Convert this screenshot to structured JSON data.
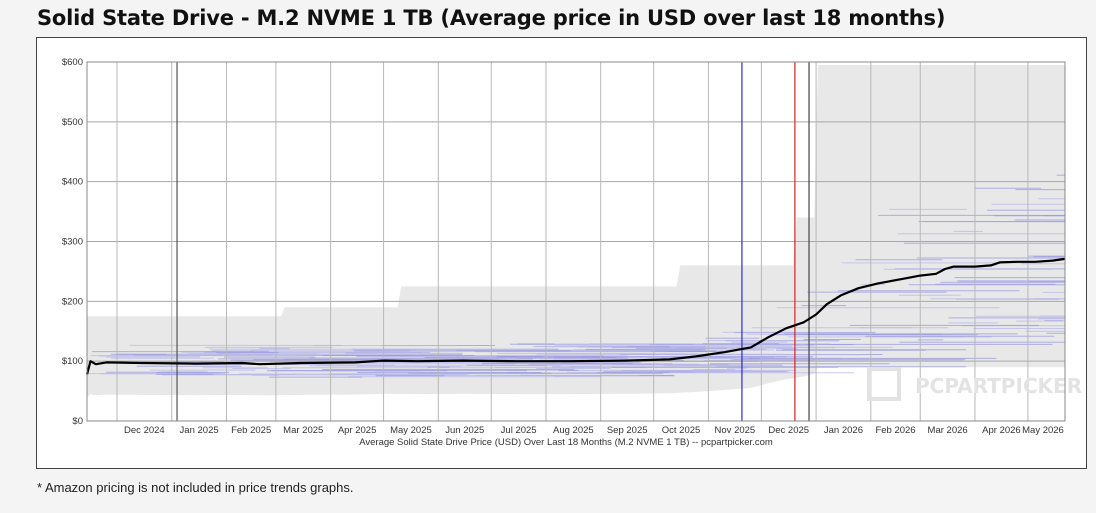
{
  "title": "Solid State Drive - M.2 NVME 1 TB (Average price in USD over last 18 months)",
  "footnote": "* Amazon pricing is not included in price trends graphs.",
  "watermark": "PCPARTPICKER",
  "chart_data": {
    "type": "line",
    "caption": "Average Solid State Drive Price (USD) Over Last 18 Months (M.2 NVME 1 TB) -- pcpartpicker.com",
    "x_ticks": [
      "Dec 2024",
      "Jan 2025",
      "Feb 2025",
      "Mar 2025",
      "Apr 2025",
      "May 2025",
      "Jun 2025",
      "Jul 2025",
      "Aug 2025",
      "Sep 2025",
      "Oct 2025",
      "Nov 2025",
      "Dec 2025",
      "Jan 2026",
      "Feb 2026",
      "Mar 2026",
      "Apr 2026",
      "May 2026"
    ],
    "y_ticks": [
      "$0",
      "$100",
      "$200",
      "$300",
      "$400",
      "$500",
      "$600"
    ],
    "ylim": [
      0,
      600
    ],
    "xlim": [
      "2024-11-14",
      "2026-05-22"
    ],
    "grid": true,
    "series": [
      {
        "x": [
          "2024-11-14",
          "2024-11-16",
          "2024-11-19",
          "2024-11-25",
          "2024-12-15",
          "2025-01-15",
          "2025-02-10",
          "2025-02-20",
          "2025-03-15",
          "2025-04-15",
          "2025-05-01",
          "2025-05-20",
          "2025-06-15",
          "2025-07-15",
          "2025-08-15",
          "2025-09-15",
          "2025-10-10",
          "2025-10-25",
          "2025-11-10",
          "2025-11-25",
          "2025-12-05",
          "2025-12-15",
          "2025-12-25",
          "2026-01-01",
          "2026-01-07",
          "2026-01-15",
          "2026-01-25",
          "2026-02-05",
          "2026-02-20",
          "2026-03-01",
          "2026-03-10",
          "2026-03-15",
          "2026-03-20",
          "2026-04-01",
          "2026-04-10",
          "2026-04-15",
          "2026-04-25",
          "2026-05-05",
          "2026-05-15",
          "2026-05-22"
        ],
        "y": [
          78,
          100,
          95,
          98,
          97,
          96,
          97,
          95,
          97,
          98,
          101,
          100,
          101,
          100,
          100,
          101,
          103,
          108,
          115,
          123,
          140,
          155,
          165,
          178,
          195,
          210,
          222,
          230,
          238,
          243,
          246,
          254,
          258,
          258,
          260,
          265,
          266,
          266,
          268,
          271
        ],
        "color": "#000000"
      }
    ],
    "reference_lines": [
      {
        "date": "2025-01-04",
        "color": "#555555"
      },
      {
        "date": "2025-11-20",
        "color": "#2b2bd6"
      },
      {
        "date": "2025-12-20",
        "color": "#dd2222"
      },
      {
        "date": "2025-12-28",
        "color": "#444444"
      }
    ]
  }
}
